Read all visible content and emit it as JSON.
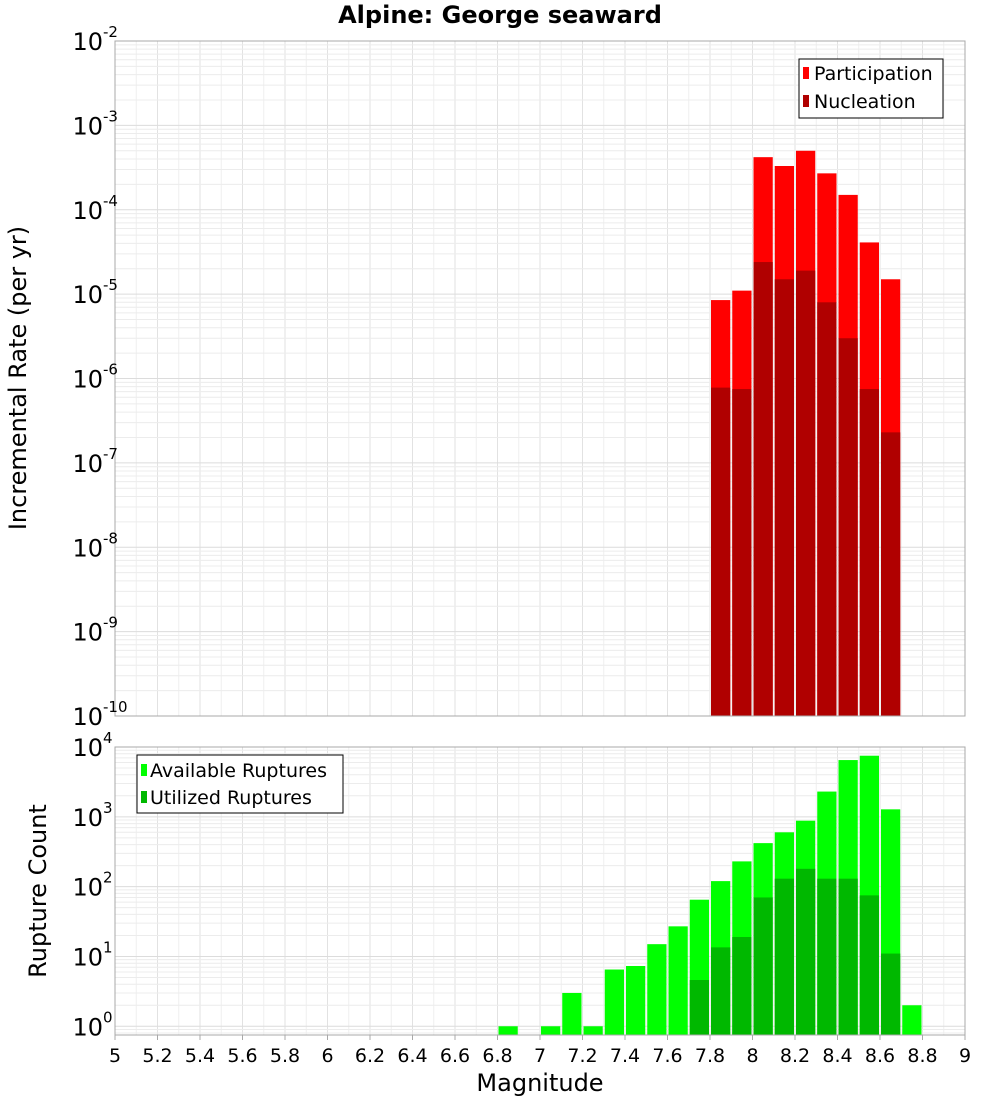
{
  "title": "Alpine: George seaward",
  "x_axis_label": "Magnitude",
  "x_tick_labels": [
    "5",
    "5.2",
    "5.4",
    "5.6",
    "5.8",
    "6",
    "6.2",
    "6.4",
    "6.6",
    "6.8",
    "7",
    "7.2",
    "7.4",
    "7.6",
    "7.8",
    "8",
    "8.2",
    "8.4",
    "8.6",
    "8.8",
    "9"
  ],
  "chart_data": [
    {
      "type": "bar",
      "ylabel": "Incremental Rate (per yr)",
      "xlabel": "Magnitude",
      "xlim": [
        5,
        9
      ],
      "ylim": [
        1e-10,
        0.01
      ],
      "yscale": "log",
      "y_tick_labels": [
        {
          "base": "10",
          "exp": "-10"
        },
        {
          "base": "10",
          "exp": "-9"
        },
        {
          "base": "10",
          "exp": "-8"
        },
        {
          "base": "10",
          "exp": "-7"
        },
        {
          "base": "10",
          "exp": "-6"
        },
        {
          "base": "10",
          "exp": "-5"
        },
        {
          "base": "10",
          "exp": "-4"
        },
        {
          "base": "10",
          "exp": "-3"
        },
        {
          "base": "10",
          "exp": "-2"
        }
      ],
      "grid": true,
      "legend_position": "top-right",
      "x": [
        7.85,
        7.95,
        8.05,
        8.15,
        8.25,
        8.35,
        8.45,
        8.55,
        8.65
      ],
      "series": [
        {
          "name": "Participation",
          "color": "#ff0000",
          "values": [
            8.5e-06,
            1.1e-05,
            0.00042,
            0.00033,
            0.0005,
            0.00027,
            0.00015,
            4.1e-05,
            1.5e-05
          ]
        },
        {
          "name": "Nucleation",
          "color": "#b00000",
          "values": [
            7.8e-07,
            7.5e-07,
            2.4e-05,
            1.5e-05,
            1.9e-05,
            8e-06,
            3e-06,
            7.5e-07,
            2.3e-07
          ]
        }
      ]
    },
    {
      "type": "bar",
      "ylabel": "Rupture Count",
      "xlabel": "Magnitude",
      "xlim": [
        5,
        9
      ],
      "ylim": [
        0.75,
        10000
      ],
      "yscale": "log",
      "y_tick_labels": [
        {
          "base": "10",
          "exp": "0"
        },
        {
          "base": "10",
          "exp": "1"
        },
        {
          "base": "10",
          "exp": "2"
        },
        {
          "base": "10",
          "exp": "3"
        },
        {
          "base": "10",
          "exp": "4"
        }
      ],
      "grid": true,
      "legend_position": "top-left",
      "x": [
        6.85,
        7.05,
        7.15,
        7.25,
        7.35,
        7.45,
        7.55,
        7.65,
        7.75,
        7.85,
        7.95,
        8.05,
        8.15,
        8.25,
        8.35,
        8.45,
        8.55,
        8.65,
        8.75
      ],
      "series": [
        {
          "name": "Available Ruptures",
          "color": "#00ff00",
          "values": [
            1,
            1,
            3,
            1,
            6.5,
            7.3,
            15,
            27,
            65,
            120,
            230,
            420,
            600,
            880,
            2300,
            6500,
            7500,
            1280,
            2
          ]
        },
        {
          "name": "Utilized Ruptures",
          "color": "#00b800",
          "values": [
            null,
            null,
            null,
            null,
            null,
            null,
            null,
            null,
            4.6,
            13.5,
            19,
            70,
            130,
            180,
            130,
            130,
            75,
            11,
            null
          ]
        }
      ]
    }
  ]
}
